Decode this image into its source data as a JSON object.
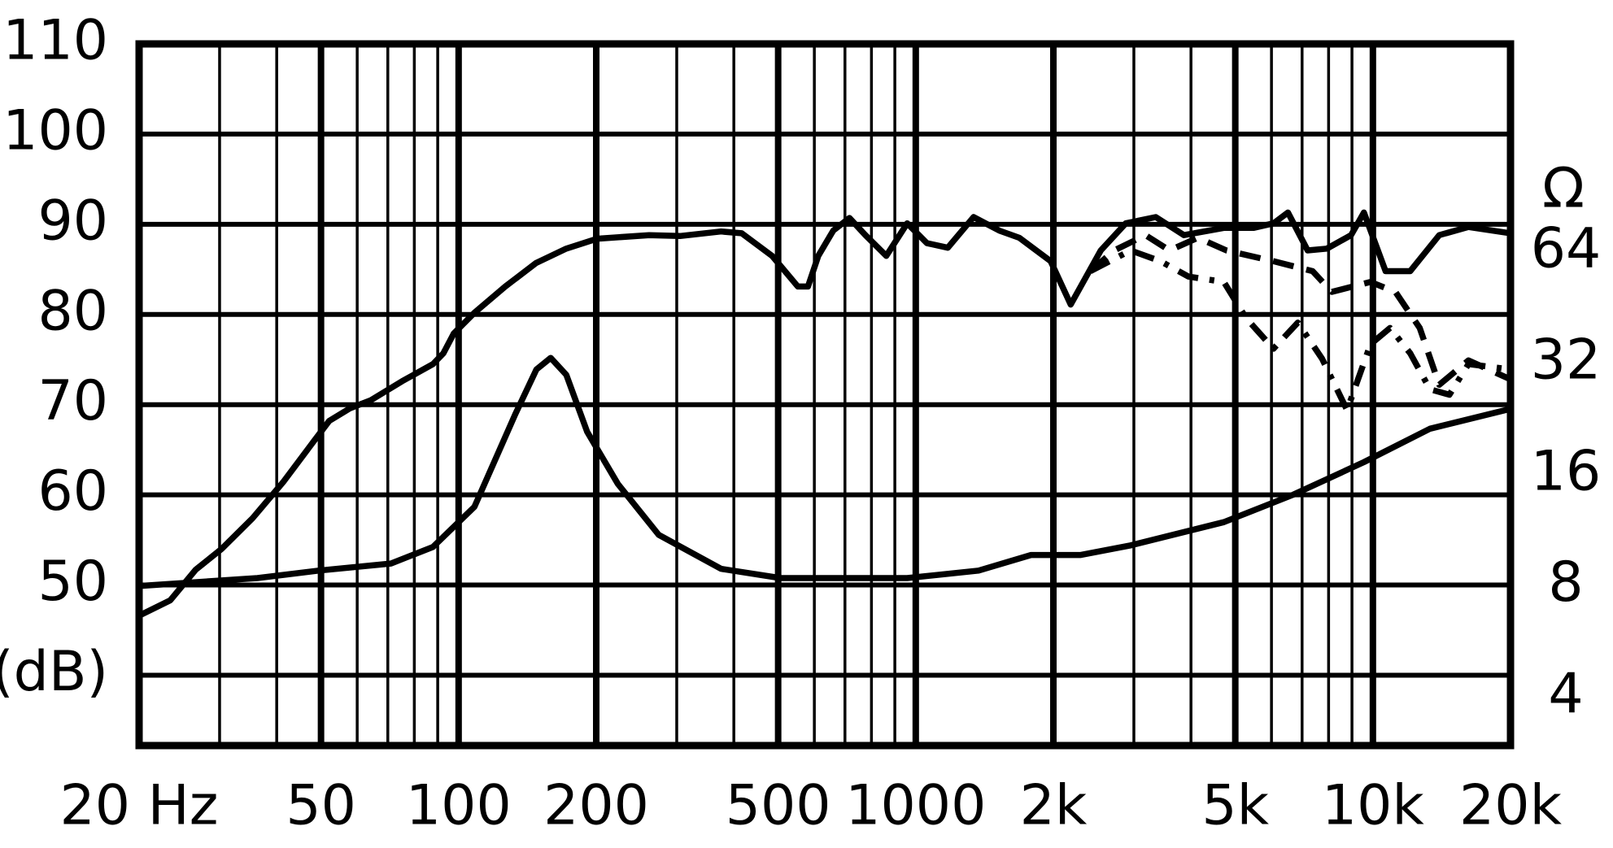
{
  "chart_data": {
    "type": "line",
    "y2label": "Ω",
    "xscale": "log",
    "y2scale": "log",
    "grid": true,
    "color": "#000000",
    "xlim": [
      20,
      20000
    ],
    "xticks": [
      {
        "value": 20,
        "label": "20 Hz"
      },
      50,
      100,
      200,
      500,
      1000,
      {
        "value": 2000,
        "label": "2k"
      },
      {
        "value": 5000,
        "label": "5k"
      },
      {
        "value": 10000,
        "label": "10k"
      },
      {
        "value": 20000,
        "label": "20k"
      }
    ],
    "xminor": [
      30,
      40,
      60,
      70,
      80,
      90,
      300,
      400,
      600,
      700,
      800,
      900,
      3000,
      4000,
      6000,
      7000,
      8000,
      9000
    ],
    "ylim": [
      32.2,
      110
    ],
    "yticks": [
      {
        "value": 40,
        "label": "(dB)"
      },
      50,
      60,
      70,
      80,
      90,
      100,
      110
    ],
    "y2lim": [
      2.96,
      234
    ],
    "y2ticks": [
      4,
      8,
      16,
      32,
      64
    ],
    "series": [
      {
        "color": "#000000",
        "dash": "solid",
        "x": [
          20,
          23.4,
          26.6,
          30.3,
          35.4,
          41.3,
          48.3,
          52.1,
          57.9,
          64.3,
          75.2,
          87.9,
          92.6,
          97.6,
          108.3,
          126.5,
          147.7,
          172,
          201,
          261,
          305,
          375,
          416,
          485,
          552,
          581,
          612,
          660,
          716,
          776,
          862,
          958,
          1058,
          1175,
          1338,
          1523,
          1685,
          1973,
          2182,
          2295,
          2540,
          2880,
          3350,
          3860,
          4720,
          5480,
          6060,
          6520,
          7200,
          7930,
          8960,
          9560,
          10660,
          12070,
          13970,
          16180,
          20000
        ],
        "values": [
          46.6,
          48.3,
          51.7,
          54,
          57.4,
          61.4,
          66,
          68.2,
          69.6,
          70.5,
          72.6,
          74.5,
          75.7,
          77.9,
          80.2,
          83.1,
          85.7,
          87.3,
          88.4,
          88.8,
          88.7,
          89.2,
          89,
          86.5,
          83.1,
          83.1,
          86.5,
          89.3,
          90.7,
          88.8,
          86.5,
          90.1,
          87.9,
          87.4,
          90.8,
          89.3,
          88.5,
          85.9,
          81.1,
          83.1,
          87.1,
          90.1,
          90.8,
          88.8,
          89.6,
          89.6,
          90.1,
          91.3,
          87.1,
          87.3,
          88.8,
          91.3,
          84.8,
          84.8,
          88.8,
          89.7,
          89
        ]
      },
      {
        "color": "#000000",
        "dash": "dashed",
        "x": [
          2410,
          2720,
          3180,
          3590,
          4140,
          4780,
          6060,
          7380,
          8130,
          9880,
          11200,
          12660,
          13970,
          16180,
          20000
        ],
        "values": [
          84.8,
          87.1,
          88.8,
          87.1,
          88.5,
          87.1,
          85.9,
          84.8,
          82.5,
          83.6,
          82.5,
          78.5,
          72.2,
          74.9,
          72.8
        ]
      },
      {
        "color": "#000000",
        "dash": "dashdot",
        "x": [
          2410,
          2950,
          3430,
          3950,
          4720,
          5280,
          6060,
          6850,
          7740,
          8780,
          9880,
          10900,
          12070,
          13330,
          14700,
          16180,
          20000
        ],
        "values": [
          84.8,
          87.1,
          85.9,
          84.2,
          83.6,
          79.6,
          76.2,
          79.1,
          75.1,
          69.4,
          76.7,
          78.5,
          75.7,
          71.7,
          71.1,
          74.5,
          73.9
        ]
      },
      {
        "color": "#000000",
        "dash": "solid",
        "axis": "y2",
        "x": [
          20,
          36.3,
          49.4,
          71.1,
          87.9,
          108.3,
          133,
          148,
          159,
          172,
          191,
          223,
          274,
          375,
          506,
          958,
          1372,
          1787,
          2295,
          2950,
          4720,
          6680,
          9560,
          13330,
          20000
        ],
        "values": [
          8.0,
          8.4,
          8.8,
          9.2,
          10.2,
          13.1,
          23.3,
          30.8,
          33.1,
          29.8,
          20.9,
          15.1,
          11.0,
          8.9,
          8.4,
          8.4,
          8.8,
          9.7,
          9.7,
          10.3,
          11.9,
          14.1,
          17.3,
          21.3,
          24.1
        ]
      }
    ]
  }
}
